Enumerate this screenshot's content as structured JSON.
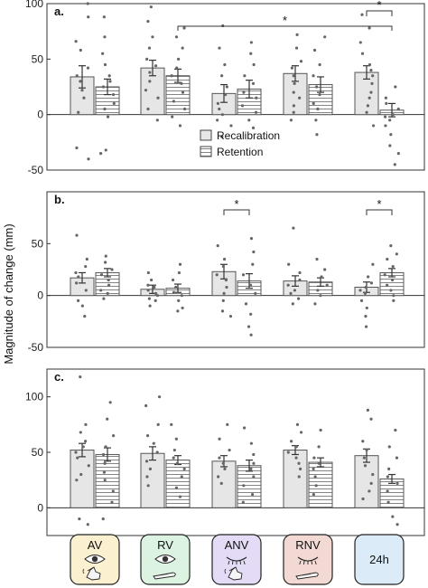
{
  "figure": {
    "ylabel": "Magnitude of change (mm)",
    "legend": [
      {
        "label": "Recalibration",
        "pattern": "solid-light-gray"
      },
      {
        "label": "Retention",
        "pattern": "horizontal-stripes"
      }
    ],
    "colors": {
      "recal_fill": "#e6e6e6",
      "ret_fill": "#ffffff",
      "edge": "#555555",
      "point": "#666666"
    },
    "conditions": [
      {
        "label": "AV",
        "bg": "#fbf1d0",
        "icons": [
          "eye-icon",
          "pointing-hand-icon"
        ]
      },
      {
        "label": "RV",
        "bg": "#dcf3e2",
        "icons": [
          "eye-icon",
          "resting-hand-icon"
        ]
      },
      {
        "label": "ANV",
        "bg": "#e4dcf6",
        "icons": [
          "closed-eye-icon",
          "pointing-hand-icon"
        ]
      },
      {
        "label": "RNV",
        "bg": "#f3d9d3",
        "icons": [
          "closed-eye-icon",
          "resting-hand-icon"
        ]
      },
      {
        "label": "24h",
        "bg": "#dbebf8",
        "icons": []
      }
    ]
  },
  "chart_data": [
    {
      "type": "bar",
      "panel_label": "a.",
      "categories": [
        "AV",
        "RV",
        "ANV",
        "RNV",
        "24h"
      ],
      "ylim": [
        -50,
        100
      ],
      "yticks": [
        -50,
        0,
        50,
        100
      ],
      "legend_placement": "bottom-center",
      "series": [
        {
          "name": "Recalibration",
          "values": [
            34,
            42,
            19,
            37,
            38
          ],
          "sem": [
            10,
            7,
            8,
            7,
            6
          ],
          "points": [
            [
              100,
              88,
              66,
              58,
              42,
              35,
              30,
              22,
              15,
              2,
              -30,
              -40
            ],
            [
              97,
              84,
              70,
              60,
              50,
              44,
              38,
              30,
              22,
              15,
              5,
              -5
            ],
            [
              80,
              60,
              45,
              35,
              25,
              18,
              10,
              5,
              0,
              -5,
              -10,
              -20
            ],
            [
              72,
              60,
              48,
              42,
              35,
              28,
              20,
              15,
              8,
              2,
              -5
            ],
            [
              90,
              78,
              65,
              55,
              45,
              40,
              35,
              28,
              20,
              15,
              8,
              2,
              -10
            ]
          ]
        },
        {
          "name": "Retention",
          "values": [
            25,
            35,
            23,
            27,
            4
          ],
          "sem": [
            7,
            6,
            8,
            7,
            6
          ],
          "points": [
            [
              88,
              70,
              55,
              45,
              35,
              30,
              25,
              18,
              10,
              5,
              -2,
              -32,
              -35
            ],
            [
              78,
              70,
              60,
              50,
              42,
              35,
              28,
              20,
              12,
              5,
              -2,
              -10
            ],
            [
              65,
              55,
              45,
              35,
              28,
              20,
              15,
              8,
              2,
              -5,
              -12
            ],
            [
              70,
              58,
              45,
              35,
              25,
              18,
              10,
              5,
              -5,
              -18
            ],
            [
              25,
              15,
              10,
              5,
              0,
              -2,
              -5,
              -10,
              -18,
              -28,
              -35,
              -45
            ]
          ]
        }
      ],
      "annotations": [
        {
          "type": "significance",
          "from": "RV",
          "to": "24h",
          "label": "*"
        },
        {
          "type": "significance",
          "within": "24h",
          "label": "*"
        }
      ]
    },
    {
      "type": "bar",
      "panel_label": "b.",
      "categories": [
        "AV",
        "RV",
        "ANV",
        "RNV",
        "24h"
      ],
      "ylim": [
        -50,
        100
      ],
      "yticks": [
        -50,
        0,
        50
      ],
      "series": [
        {
          "name": "Recalibration",
          "values": [
            17,
            6,
            23,
            14,
            8
          ],
          "sem": [
            5,
            4,
            7,
            5,
            5
          ],
          "points": [
            [
              58,
              35,
              28,
              22,
              18,
              12,
              5,
              -5,
              -10,
              -20
            ],
            [
              22,
              15,
              10,
              8,
              5,
              2,
              0,
              -3,
              -5,
              -10
            ],
            [
              48,
              35,
              28,
              20,
              15,
              8,
              2,
              -5,
              -15,
              -20
            ],
            [
              65,
              30,
              22,
              15,
              10,
              5,
              2,
              -3,
              -8
            ],
            [
              30,
              18,
              12,
              8,
              5,
              2,
              -5,
              -12,
              -20,
              -30
            ]
          ]
        },
        {
          "name": "Retention",
          "values": [
            22,
            7,
            14,
            13,
            22
          ],
          "sem": [
            4,
            4,
            7,
            4,
            4
          ],
          "points": [
            [
              38,
              32,
              25,
              20,
              15,
              10,
              5,
              2,
              -3
            ],
            [
              30,
              22,
              15,
              8,
              3,
              0,
              -5,
              -12,
              -15
            ],
            [
              55,
              42,
              30,
              20,
              10,
              2,
              -8,
              -18,
              -30,
              -38
            ],
            [
              35,
              25,
              18,
              10,
              5,
              0,
              -8
            ],
            [
              48,
              40,
              35,
              28,
              20,
              15,
              10,
              5,
              0,
              -5
            ]
          ]
        }
      ],
      "annotations": [
        {
          "type": "significance",
          "within": "ANV",
          "label": "*"
        },
        {
          "type": "significance",
          "within": "24h",
          "label": "*"
        }
      ]
    },
    {
      "type": "bar",
      "panel_label": "c.",
      "categories": [
        "AV",
        "RV",
        "ANV",
        "RNV",
        "24h"
      ],
      "ylim": [
        -25,
        125
      ],
      "yticks": [
        0,
        50,
        100
      ],
      "series": [
        {
          "name": "Recalibration",
          "values": [
            52,
            49,
            42,
            52,
            47
          ],
          "sem": [
            6,
            6,
            5,
            4,
            6
          ],
          "points": [
            [
              118,
              75,
              68,
              60,
              55,
              50,
              45,
              38,
              30,
              25,
              -10,
              -15
            ],
            [
              100,
              92,
              75,
              65,
              58,
              50,
              42,
              35,
              28,
              20
            ],
            [
              75,
              62,
              52,
              45,
              40,
              35,
              28,
              22
            ],
            [
              75,
              68,
              60,
              55,
              50,
              45,
              40,
              35,
              28
            ],
            [
              88,
              80,
              60,
              52,
              45,
              38,
              30,
              22,
              15,
              8
            ]
          ]
        },
        {
          "name": "Retention",
          "values": [
            48,
            43,
            38,
            41,
            26
          ],
          "sem": [
            6,
            4,
            5,
            4,
            4
          ],
          "points": [
            [
              95,
              80,
              65,
              55,
              48,
              40,
              32,
              25,
              15,
              5,
              -10
            ],
            [
              75,
              62,
              52,
              45,
              40,
              35,
              28,
              18,
              10
            ],
            [
              72,
              58,
              48,
              40,
              35,
              28,
              20,
              12,
              5
            ],
            [
              70,
              55,
              45,
              40,
              35,
              28,
              20,
              12
            ],
            [
              70,
              55,
              45,
              35,
              28,
              22,
              15,
              5,
              -8,
              -15
            ]
          ]
        }
      ],
      "annotations": []
    }
  ]
}
